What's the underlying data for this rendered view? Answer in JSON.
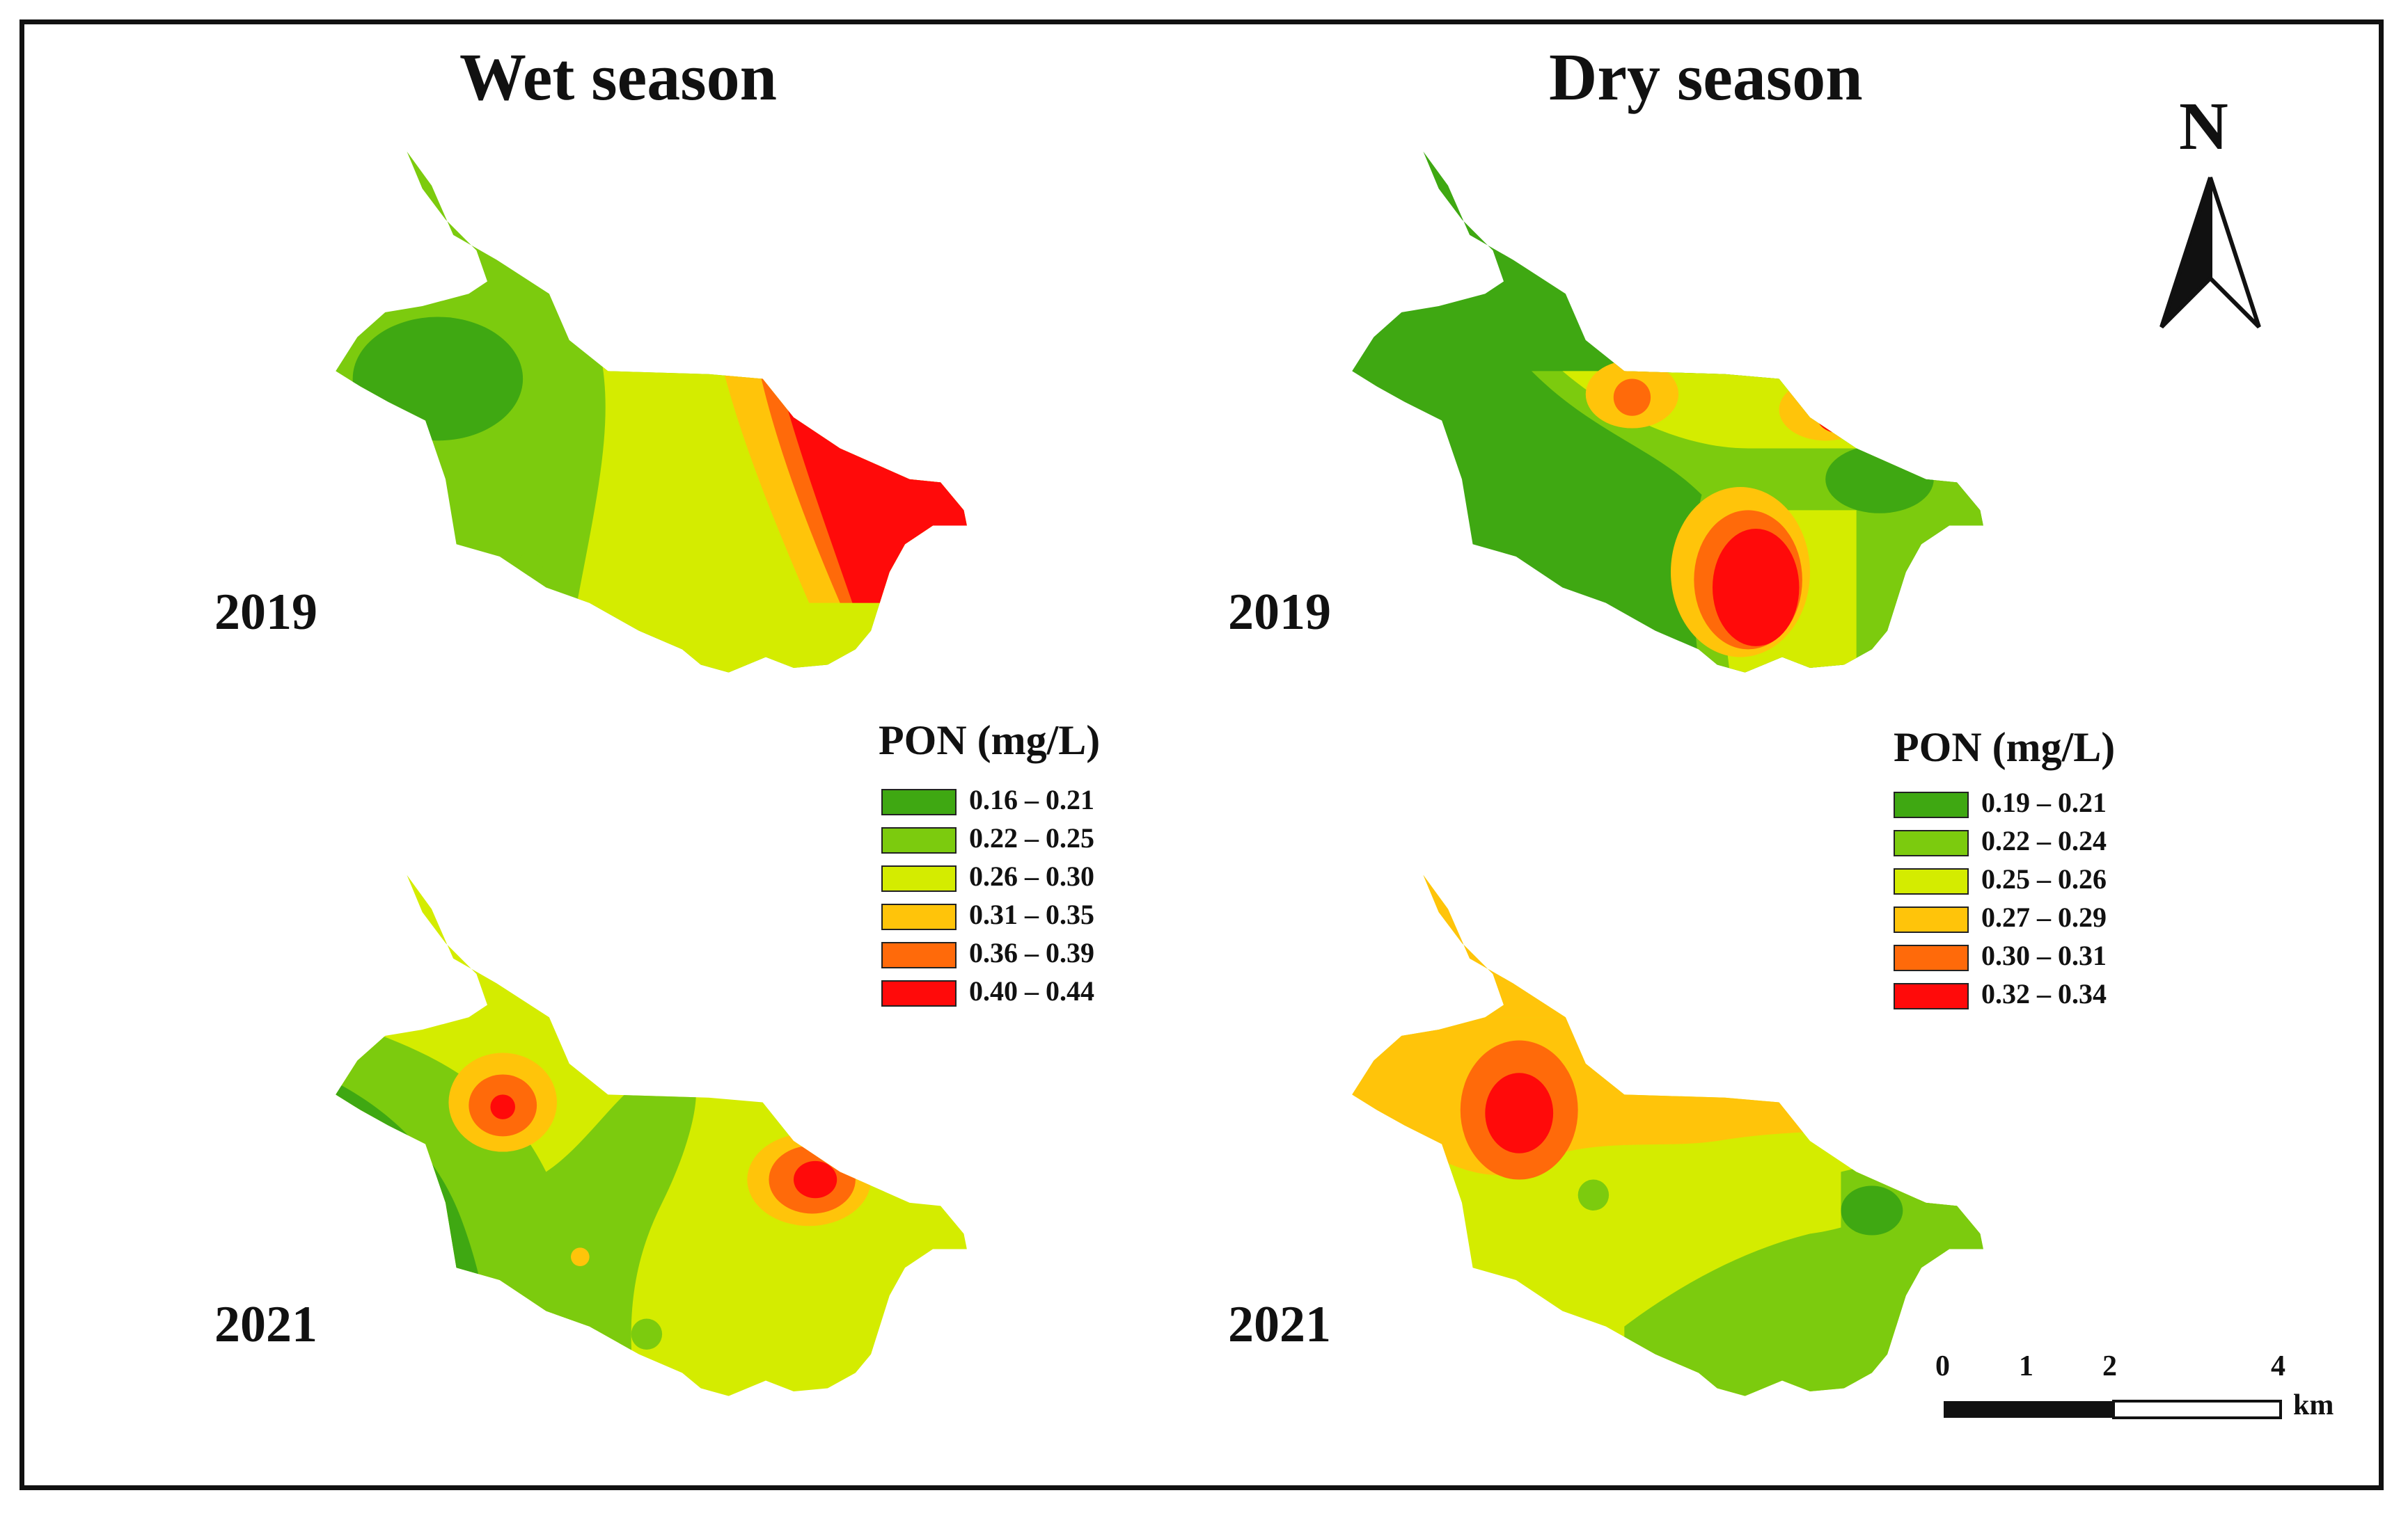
{
  "panels": {
    "wet_title": "Wet season",
    "dry_title": "Dry season",
    "years": {
      "top_left": "2019",
      "top_right": "2019",
      "bottom_left": "2021",
      "bottom_right": "2021"
    }
  },
  "legends": {
    "wet": {
      "title": "PON (mg/L)",
      "classes": [
        {
          "label": "0.16 – 0.21",
          "color": "#3FA812"
        },
        {
          "label": "0.22 – 0.25",
          "color": "#7CCB0E"
        },
        {
          "label": "0.26 – 0.30",
          "color": "#D4EC00"
        },
        {
          "label": "0.31 – 0.35",
          "color": "#FFC40A"
        },
        {
          "label": "0.36 – 0.39",
          "color": "#FF6A0A"
        },
        {
          "label": "0.40 – 0.44",
          "color": "#FF0A0A"
        }
      ]
    },
    "dry": {
      "title": "PON (mg/L)",
      "classes": [
        {
          "label": "0.19 – 0.21",
          "color": "#3FA812"
        },
        {
          "label": "0.22 – 0.24",
          "color": "#7CCB0E"
        },
        {
          "label": "0.25 – 0.26",
          "color": "#D4EC00"
        },
        {
          "label": "0.27 – 0.29",
          "color": "#FFC40A"
        },
        {
          "label": "0.30 – 0.31",
          "color": "#FF6A0A"
        },
        {
          "label": "0.32 – 0.34",
          "color": "#FF0A0A"
        }
      ]
    }
  },
  "north_arrow": {
    "label": "N"
  },
  "scale_bar": {
    "ticks": [
      "0",
      "1",
      "2",
      "4"
    ],
    "unit": "km"
  }
}
